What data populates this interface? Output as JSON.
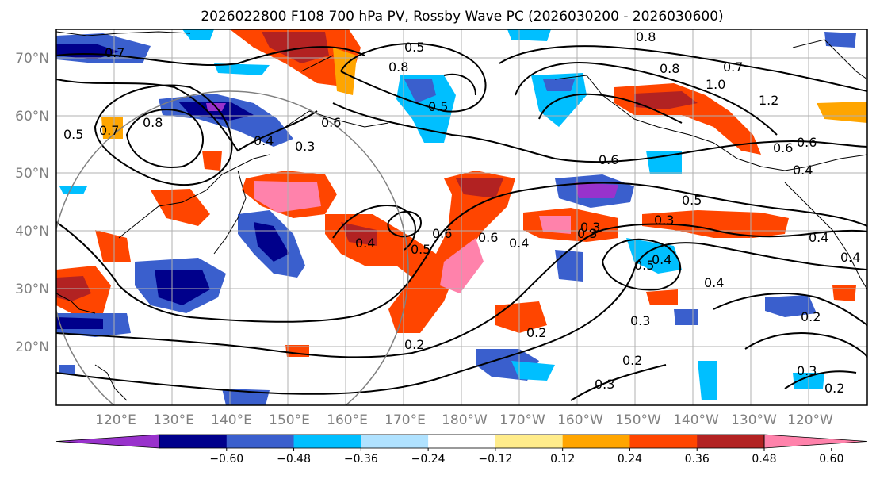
{
  "title": "2026022800 F108 700 hPa PV, Rossby Wave PC (2026030200 - 2026030600)",
  "lat_ticks": [
    "70°N",
    "60°N",
    "50°N",
    "40°N",
    "30°N",
    "20°N"
  ],
  "lon_ticks": [
    "120°E",
    "130°E",
    "140°E",
    "150°E",
    "160°E",
    "170°E",
    "180°W",
    "170°W",
    "160°W",
    "150°W",
    "140°W",
    "130°W",
    "120°W"
  ],
  "colorbar": {
    "colors": [
      "#9932cc",
      "#00008b",
      "#3a5fcd",
      "#00bfff",
      "#b0e2ff",
      "#ffffff",
      "#ffec8b",
      "#ffa500",
      "#ff4500",
      "#b22222",
      "#ff82ab"
    ],
    "labels": [
      "−0.60",
      "−0.48",
      "−0.36",
      "−0.24",
      "−0.12",
      "0.12",
      "0.24",
      "0.36",
      "0.48",
      "0.60"
    ]
  },
  "contour_labels": [
    "0.5",
    "0.8",
    "0.7",
    "0.8",
    "1.0",
    "1.2",
    "0.7",
    "0.8",
    "0.5",
    "0.6",
    "0.4",
    "0.3",
    "0.7",
    "0.5",
    "0.8",
    "0.6",
    "0.6",
    "0.5",
    "0.3",
    "0.4",
    "0.4",
    "0.5",
    "0.6",
    "0.4",
    "0.3",
    "0.2",
    "0.2",
    "0.3",
    "0.2",
    "0.3",
    "0.2",
    "0.3",
    "0.4",
    "0.4",
    "0.2",
    "0.5",
    "0.3",
    "0.6",
    "0.4",
    "0.6",
    "0.4"
  ]
}
